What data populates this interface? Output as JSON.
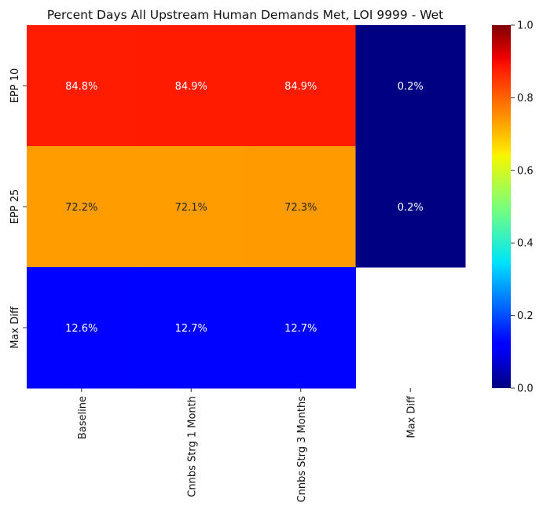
{
  "chart_data": {
    "type": "heatmap",
    "title": "Percent Days All Upstream Human Demands Met, LOI 9999 - Wet",
    "columns": [
      "Baseline",
      "Cnnbs Strg 1 Month",
      "Cnnbs Strg 3 Months",
      "Max Diff"
    ],
    "rows": [
      "EPP 10",
      "EPP 25",
      "Max Diff"
    ],
    "values": [
      [
        0.848,
        0.849,
        0.849,
        0.002
      ],
      [
        0.722,
        0.721,
        0.723,
        0.002
      ],
      [
        0.126,
        0.127,
        0.127,
        null
      ]
    ],
    "cell_labels": [
      [
        "84.8%",
        "84.9%",
        "84.9%",
        "0.2%"
      ],
      [
        "72.2%",
        "72.1%",
        "72.3%",
        "0.2%"
      ],
      [
        "12.6%",
        "12.7%",
        "12.7%",
        ""
      ]
    ],
    "colormap": "jet",
    "colorbar": {
      "range": [
        0.0,
        1.0
      ],
      "ticks": [
        0.0,
        0.2,
        0.4,
        0.6,
        0.8,
        1.0
      ],
      "tick_labels": [
        "0.0",
        "0.2",
        "0.4",
        "0.6",
        "0.8",
        "1.0"
      ]
    },
    "xlabel": "",
    "ylabel": ""
  }
}
